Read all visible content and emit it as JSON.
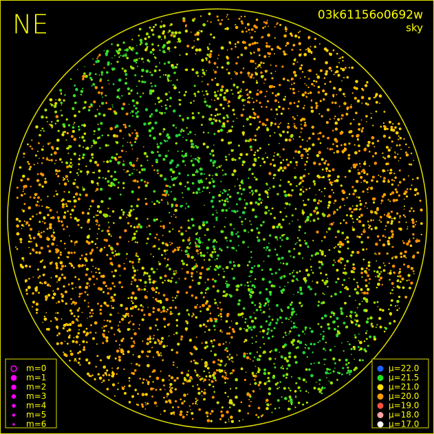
{
  "corner_label": "NE",
  "image_id": "03k61156o0692w",
  "image_type": "sky",
  "magnitude_legend": [
    {
      "label": "m=0",
      "color": "#ff00ff"
    },
    {
      "label": "m=1",
      "color": "#ff00ff"
    },
    {
      "label": "m=2",
      "color": "#ff00ff"
    },
    {
      "label": "m=3",
      "color": "#ff00ff"
    },
    {
      "label": "m=4",
      "color": "#ff00ff"
    },
    {
      "label": "m=5",
      "color": "#ff00ff"
    },
    {
      "label": "m=6",
      "color": "#ff00ff"
    }
  ],
  "brightness_legend": [
    {
      "label": "μ=22.0",
      "color": "#2060ff"
    },
    {
      "label": "μ=21.5",
      "color": "#20e020"
    },
    {
      "label": "μ=21.0",
      "color": "#ffe000"
    },
    {
      "label": "μ=20.0",
      "color": "#ff9a00"
    },
    {
      "label": "μ=19.0",
      "color": "#ff5040"
    },
    {
      "label": "μ=18.0",
      "color": "#ffa0a0"
    },
    {
      "label": "μ=17.0",
      "color": "#ffffff"
    }
  ]
}
